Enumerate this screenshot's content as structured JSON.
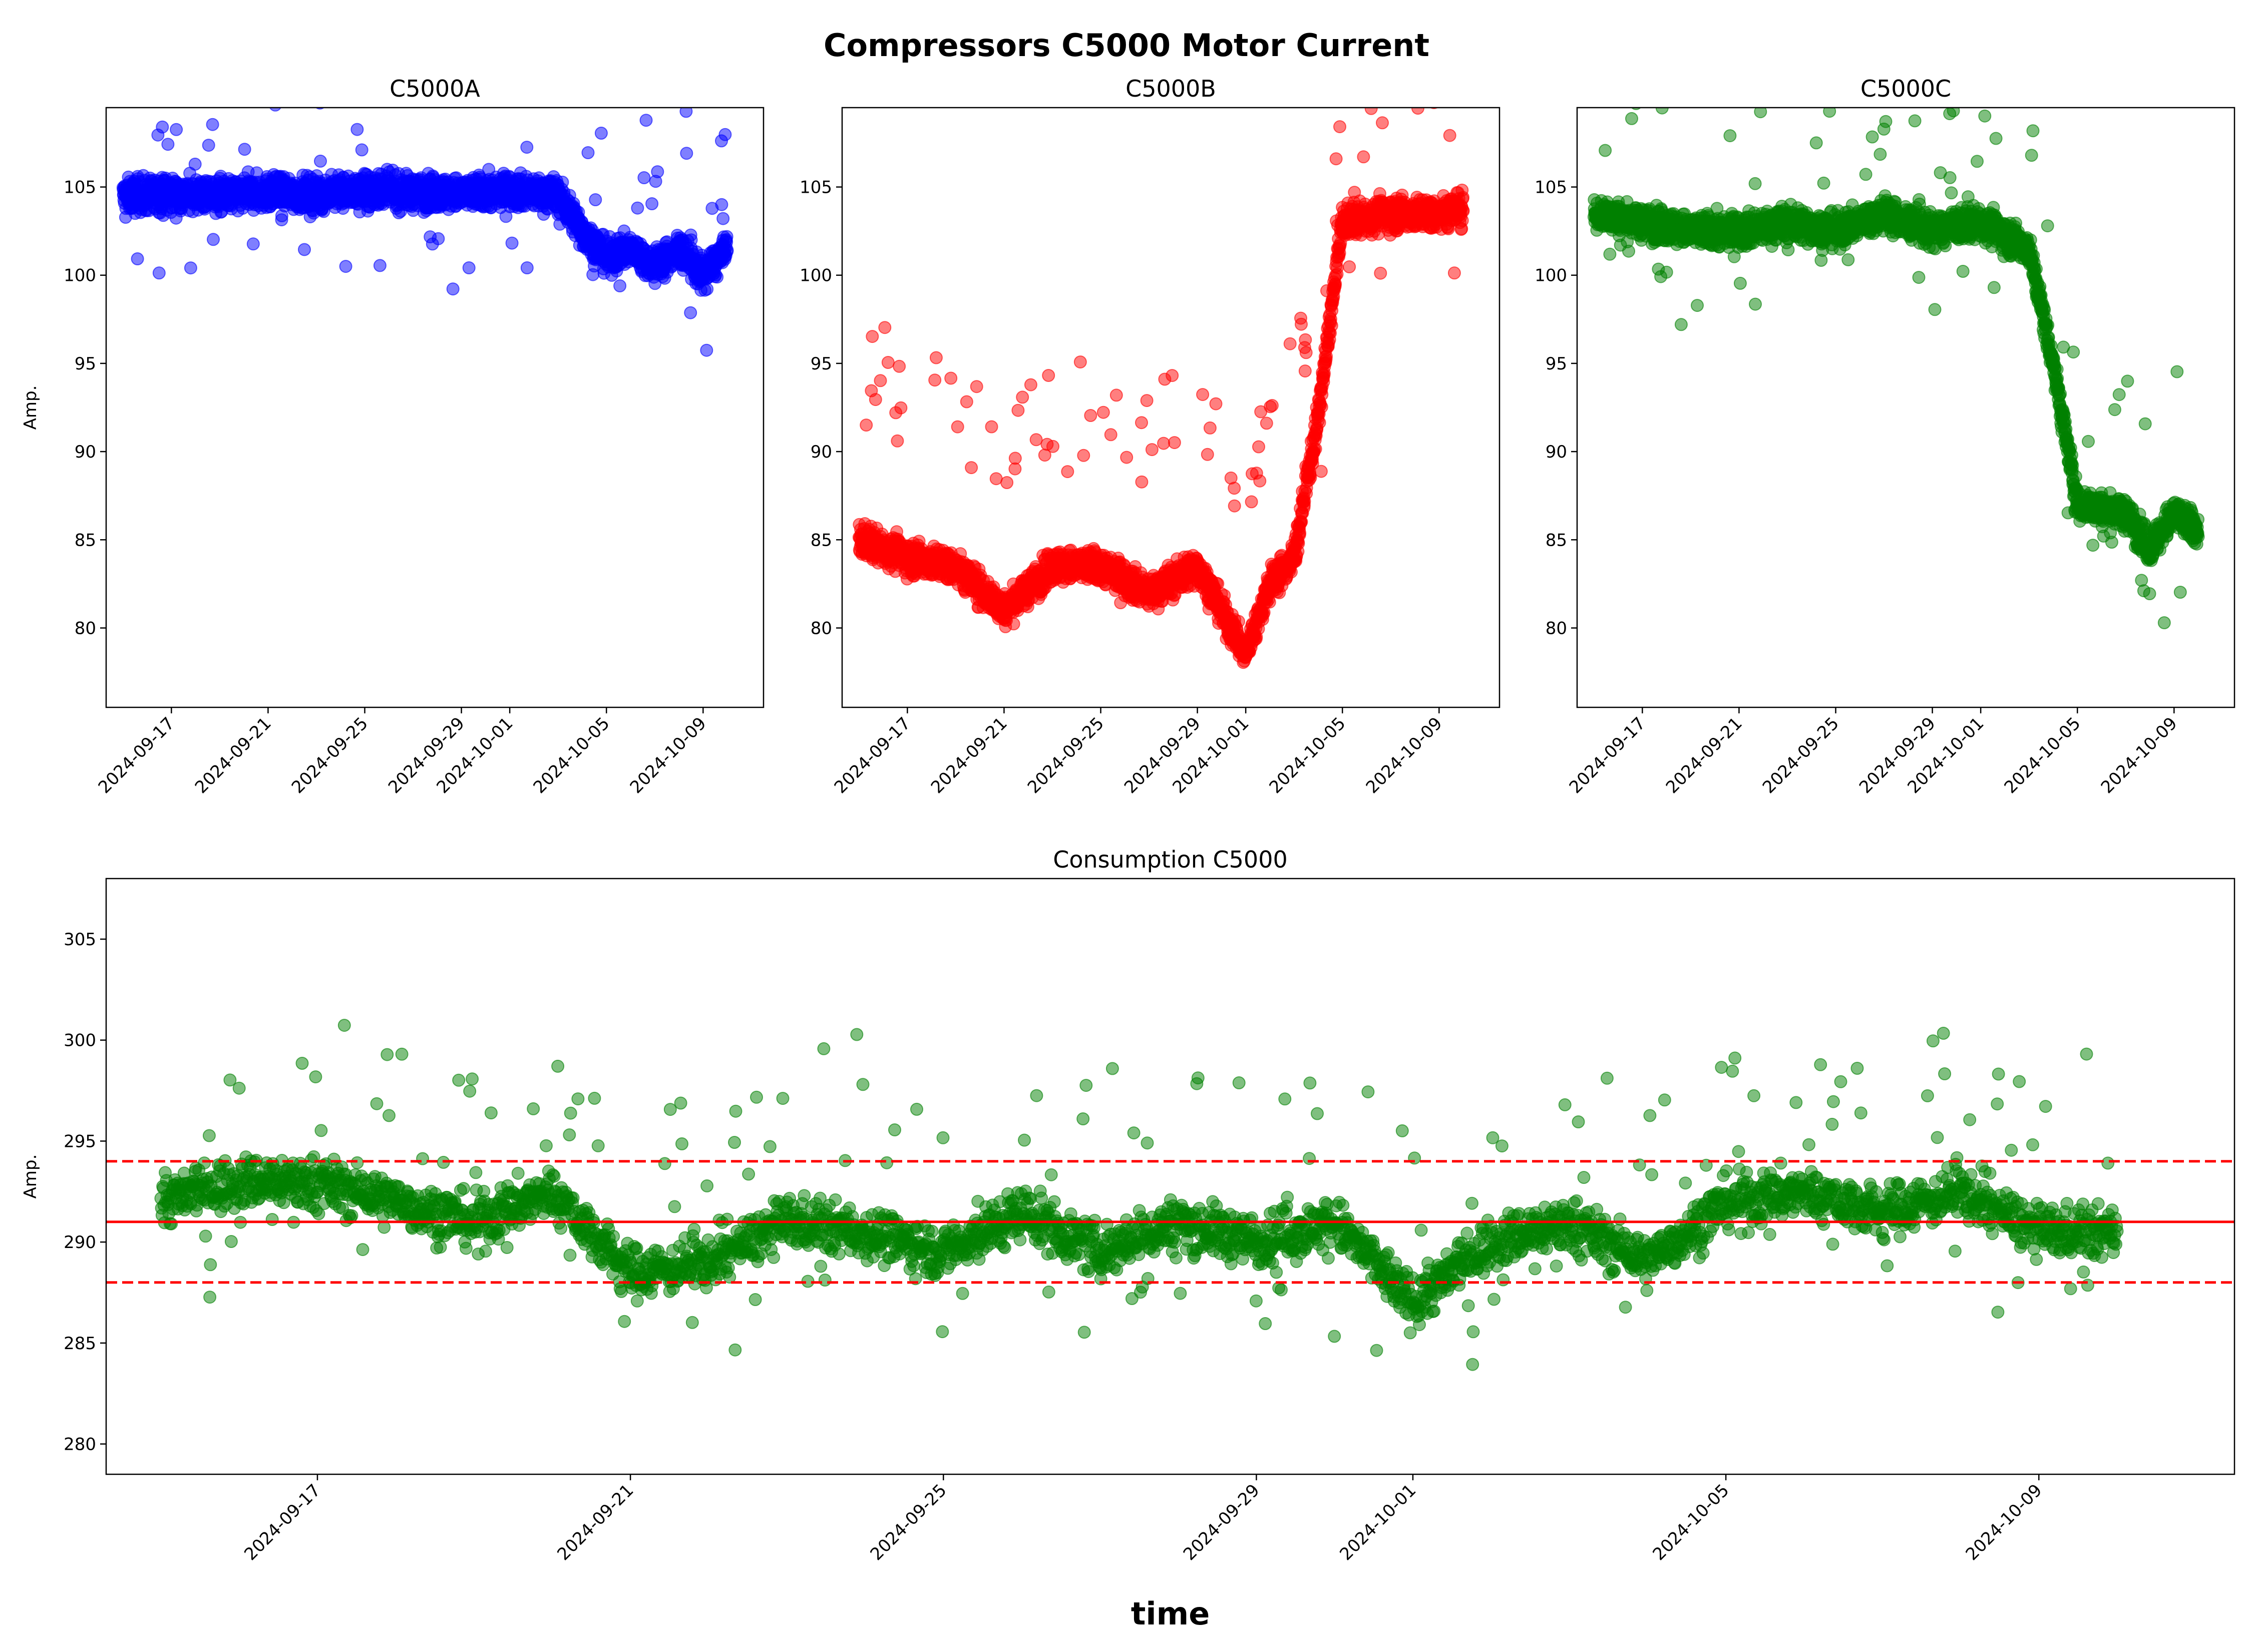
{
  "suptitle": "Compressors C5000 Motor Current",
  "colors": {
    "C5000A": "#0000ff",
    "C5000B": "#ff0000",
    "C5000C": "#008000",
    "consumption": "#008000",
    "mean_line": "#ff0000"
  },
  "chart_data": [
    {
      "type": "scatter",
      "title": "C5000A",
      "ylabel": "Amp.",
      "xlabel": "",
      "ylim": [
        75.5,
        109.5
      ],
      "y_ticks": [
        80,
        85,
        90,
        95,
        100,
        105
      ],
      "x_ticks": [
        "2024-09-17",
        "2024-09-21",
        "2024-09-25",
        "2024-09-29",
        "2024-10-01",
        "2024-10-05",
        "2024-10-09"
      ],
      "color": "#0000ff",
      "series": [
        {
          "x": [
            "2024-09-15",
            "2024-09-17",
            "2024-09-19",
            "2024-09-21",
            "2024-09-23",
            "2024-09-25",
            "2024-09-27",
            "2024-09-29",
            "2024-10-01",
            "2024-10-03",
            "2024-10-04",
            "2024-10-05",
            "2024-10-06",
            "2024-10-07",
            "2024-10-08",
            "2024-10-09",
            "2024-10-10"
          ],
          "y": [
            104.5,
            104.6,
            104.5,
            104.7,
            104.6,
            104.8,
            104.7,
            104.6,
            104.8,
            104.6,
            102.5,
            101.0,
            101.5,
            100.5,
            101.5,
            100.0,
            101.5
          ]
        }
      ]
    },
    {
      "type": "scatter",
      "title": "C5000B",
      "ylabel": "",
      "xlabel": "",
      "ylim": [
        75.5,
        109.5
      ],
      "y_ticks": [
        80,
        85,
        90,
        95,
        100,
        105
      ],
      "x_ticks": [
        "2024-09-17",
        "2024-09-21",
        "2024-09-25",
        "2024-09-29",
        "2024-10-01",
        "2024-10-05",
        "2024-10-09"
      ],
      "color": "#ff0000",
      "series": [
        {
          "x": [
            "2024-09-15",
            "2024-09-17",
            "2024-09-19",
            "2024-09-21",
            "2024-09-23",
            "2024-09-25",
            "2024-09-27",
            "2024-09-29",
            "2024-10-01",
            "2024-10-02",
            "2024-10-03",
            "2024-10-04",
            "2024-10-05",
            "2024-10-07",
            "2024-10-09",
            "2024-10-10"
          ],
          "y": [
            85.0,
            84.0,
            83.5,
            81.0,
            83.5,
            83.5,
            82.0,
            83.5,
            78.5,
            82.5,
            84.0,
            92.0,
            103.0,
            103.5,
            103.5,
            103.8
          ]
        }
      ]
    },
    {
      "type": "scatter",
      "title": "C5000C",
      "ylabel": "",
      "xlabel": "",
      "ylim": [
        75.5,
        109.5
      ],
      "y_ticks": [
        80,
        85,
        90,
        95,
        100,
        105
      ],
      "x_ticks": [
        "2024-09-17",
        "2024-09-21",
        "2024-09-25",
        "2024-09-29",
        "2024-10-01",
        "2024-10-05",
        "2024-10-09"
      ],
      "color": "#008000",
      "series": [
        {
          "x": [
            "2024-09-15",
            "2024-09-17",
            "2024-09-19",
            "2024-09-21",
            "2024-09-23",
            "2024-09-25",
            "2024-09-27",
            "2024-09-29",
            "2024-10-01",
            "2024-10-03",
            "2024-10-04",
            "2024-10-05",
            "2024-10-07",
            "2024-10-08",
            "2024-10-09",
            "2024-10-10"
          ],
          "y": [
            103.5,
            103.0,
            102.5,
            102.5,
            103.0,
            102.5,
            103.5,
            102.5,
            103.0,
            101.5,
            95.0,
            87.0,
            86.5,
            84.5,
            86.5,
            85.5
          ]
        }
      ]
    },
    {
      "type": "scatter",
      "title": "Consumption C5000",
      "ylabel": "Amp.",
      "xlabel": "time",
      "ylim": [
        278.5,
        308.0
      ],
      "y_ticks": [
        280,
        285,
        290,
        295,
        300,
        305
      ],
      "x_ticks": [
        "2024-09-17",
        "2024-09-21",
        "2024-09-25",
        "2024-09-29",
        "2024-10-01",
        "2024-10-05",
        "2024-10-09"
      ],
      "color": "#008000",
      "reference_lines": [
        {
          "y": 291.0,
          "style": "solid",
          "color": "#ff0000"
        },
        {
          "y": 294.0,
          "style": "dashed",
          "color": "#ff0000"
        },
        {
          "y": 288.0,
          "style": "dashed",
          "color": "#ff0000"
        }
      ],
      "series": [
        {
          "x": [
            "2024-09-15",
            "2024-09-16",
            "2024-09-17",
            "2024-09-18",
            "2024-09-19",
            "2024-09-20",
            "2024-09-21",
            "2024-09-22",
            "2024-09-23",
            "2024-09-24",
            "2024-09-25",
            "2024-09-26",
            "2024-09-27",
            "2024-09-28",
            "2024-09-29",
            "2024-09-30",
            "2024-10-01",
            "2024-10-02",
            "2024-10-03",
            "2024-10-04",
            "2024-10-05",
            "2024-10-06",
            "2024-10-07",
            "2024-10-08",
            "2024-10-09",
            "2024-10-10"
          ],
          "y": [
            292.0,
            293.0,
            293.0,
            292.0,
            291.0,
            292.5,
            288.5,
            289.0,
            291.0,
            290.5,
            289.5,
            291.5,
            289.5,
            291.0,
            290.0,
            291.0,
            287.0,
            290.0,
            291.0,
            289.0,
            292.0,
            292.5,
            291.5,
            292.5,
            290.5,
            290.5
          ]
        }
      ]
    }
  ]
}
